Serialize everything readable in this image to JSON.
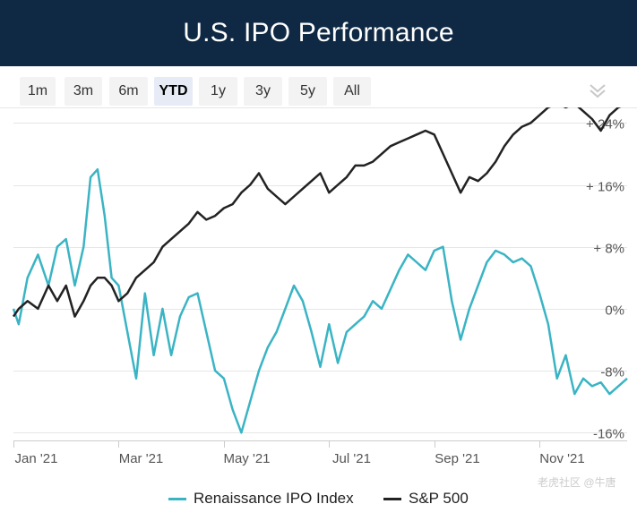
{
  "header": {
    "title": "U.S. IPO Performance"
  },
  "range_selector": {
    "buttons": [
      "1m",
      "3m",
      "6m",
      "YTD",
      "1y",
      "3y",
      "5y",
      "All"
    ],
    "selected": "YTD"
  },
  "menu": {
    "icon": "chevron-double-down-icon"
  },
  "colors": {
    "header_bg": "#0f2944",
    "ipo": "#3ab4c4",
    "sp500": "#222222",
    "grid": "#e6e6e6"
  },
  "watermark": {
    "text": "老虎社区 @牛唐"
  },
  "chart_data": {
    "type": "line",
    "title": "U.S. IPO Performance",
    "xlabel": "",
    "ylabel": "",
    "x_ticks": [
      "Jan '21",
      "Mar '21",
      "May '21",
      "Jul '21",
      "Sep '21",
      "Nov '21"
    ],
    "y_ticks": [
      "+ 24%",
      "+ 16%",
      "+ 8%",
      "0%",
      "-8%",
      "-16%"
    ],
    "y_tick_values": [
      24,
      16,
      8,
      0,
      -8,
      -16
    ],
    "xlim": [
      0,
      350
    ],
    "ylim": [
      -17,
      26
    ],
    "grid": true,
    "legend_position": "bottom",
    "series": [
      {
        "name": "Renaissance IPO Index",
        "color": "#3ab4c4",
        "x": [
          0,
          3,
          8,
          14,
          20,
          25,
          30,
          35,
          40,
          44,
          48,
          52,
          56,
          60,
          65,
          70,
          75,
          80,
          85,
          90,
          95,
          100,
          105,
          110,
          115,
          120,
          125,
          130,
          135,
          140,
          145,
          150,
          155,
          160,
          165,
          170,
          175,
          180,
          185,
          190,
          195,
          200,
          205,
          210,
          215,
          220,
          225,
          230,
          235,
          240,
          245,
          250,
          255,
          260,
          265,
          270,
          275,
          280,
          285,
          290,
          295,
          300,
          305,
          310,
          315,
          320,
          325,
          330,
          335,
          340,
          345,
          350
        ],
        "values": [
          0.0,
          -2.0,
          4.0,
          7.0,
          3.0,
          8.0,
          9.0,
          3.0,
          8.0,
          17.0,
          18.0,
          12.0,
          4.0,
          3.0,
          -3.0,
          -9.0,
          2.0,
          -6.0,
          0.0,
          -6.0,
          -1.0,
          1.5,
          2.0,
          -3.0,
          -8.0,
          -9.0,
          -13.0,
          -16.0,
          -12.0,
          -8.0,
          -5.0,
          -3.0,
          0.0,
          3.0,
          1.0,
          -3.0,
          -7.5,
          -2.0,
          -7.0,
          -3.0,
          -2.0,
          -1.0,
          1.0,
          0.0,
          2.5,
          5.0,
          7.0,
          6.0,
          5.0,
          7.5,
          8.0,
          1.0,
          -4.0,
          0.0,
          3.0,
          6.0,
          7.5,
          7.0,
          6.0,
          6.5,
          5.5,
          2.0,
          -2.0,
          -9.0,
          -6.0,
          -11.0,
          -9.0,
          -10.0,
          -9.5,
          -11.0,
          -10.0,
          -9.0
        ]
      },
      {
        "name": "S&P 500",
        "color": "#222222",
        "x": [
          0,
          3,
          8,
          14,
          20,
          25,
          30,
          35,
          40,
          44,
          48,
          52,
          56,
          60,
          65,
          70,
          75,
          80,
          85,
          90,
          95,
          100,
          105,
          110,
          115,
          120,
          125,
          130,
          135,
          140,
          145,
          150,
          155,
          160,
          165,
          170,
          175,
          180,
          185,
          190,
          195,
          200,
          205,
          210,
          215,
          220,
          225,
          230,
          235,
          240,
          245,
          250,
          255,
          260,
          265,
          270,
          275,
          280,
          285,
          290,
          295,
          300,
          305,
          310,
          315,
          320,
          325,
          330,
          335,
          340,
          345,
          350
        ],
        "values": [
          -1.0,
          0.0,
          1.0,
          0.0,
          3.0,
          1.0,
          3.0,
          -1.0,
          1.0,
          3.0,
          4.0,
          4.0,
          3.0,
          1.0,
          2.0,
          4.0,
          5.0,
          6.0,
          8.0,
          9.0,
          10.0,
          11.0,
          12.5,
          11.5,
          12.0,
          13.0,
          13.5,
          15.0,
          16.0,
          17.5,
          15.5,
          14.5,
          13.5,
          14.5,
          15.5,
          16.5,
          17.5,
          15.0,
          16.0,
          17.0,
          18.5,
          18.5,
          19.0,
          20.0,
          21.0,
          21.5,
          22.0,
          22.5,
          23.0,
          22.5,
          20.0,
          17.5,
          15.0,
          17.0,
          16.5,
          17.5,
          19.0,
          21.0,
          22.5,
          23.5,
          24.0,
          25.0,
          26.0,
          26.5,
          26.0,
          26.5,
          25.5,
          24.5,
          23.0,
          25.0,
          26.0,
          26.5
        ]
      }
    ]
  }
}
